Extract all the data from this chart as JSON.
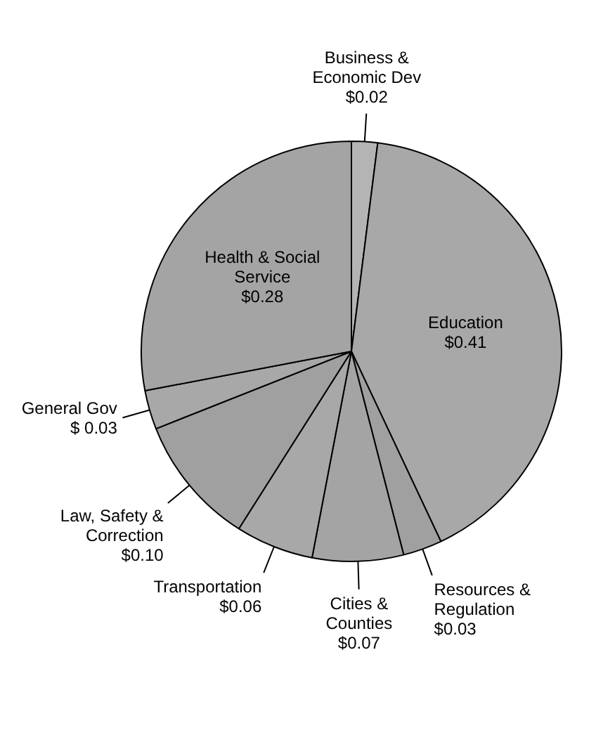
{
  "chart_data": {
    "type": "pie",
    "categories": [
      "Business & Economic Dev",
      "Education",
      "Resources & Regulation",
      "Cities & Counties",
      "Transportation",
      "Law, Safety & Correction",
      "General Gov",
      "Health & Social Service"
    ],
    "values": [
      0.02,
      0.41,
      0.03,
      0.07,
      0.06,
      0.1,
      0.03,
      0.28
    ],
    "value_labels": [
      "$0.02",
      "$0.41",
      "$0.03",
      "$0.07",
      "$0.06",
      "$0.10",
      "$ 0.03",
      "$0.28"
    ],
    "colors": [
      "#b4b4b4",
      "#a8a8a8",
      "#a0a0a0",
      "#a4a4a4",
      "#a8a8a8",
      "#a0a0a0",
      "#a8a8a8",
      "#a4a4a4"
    ],
    "legend": false
  }
}
